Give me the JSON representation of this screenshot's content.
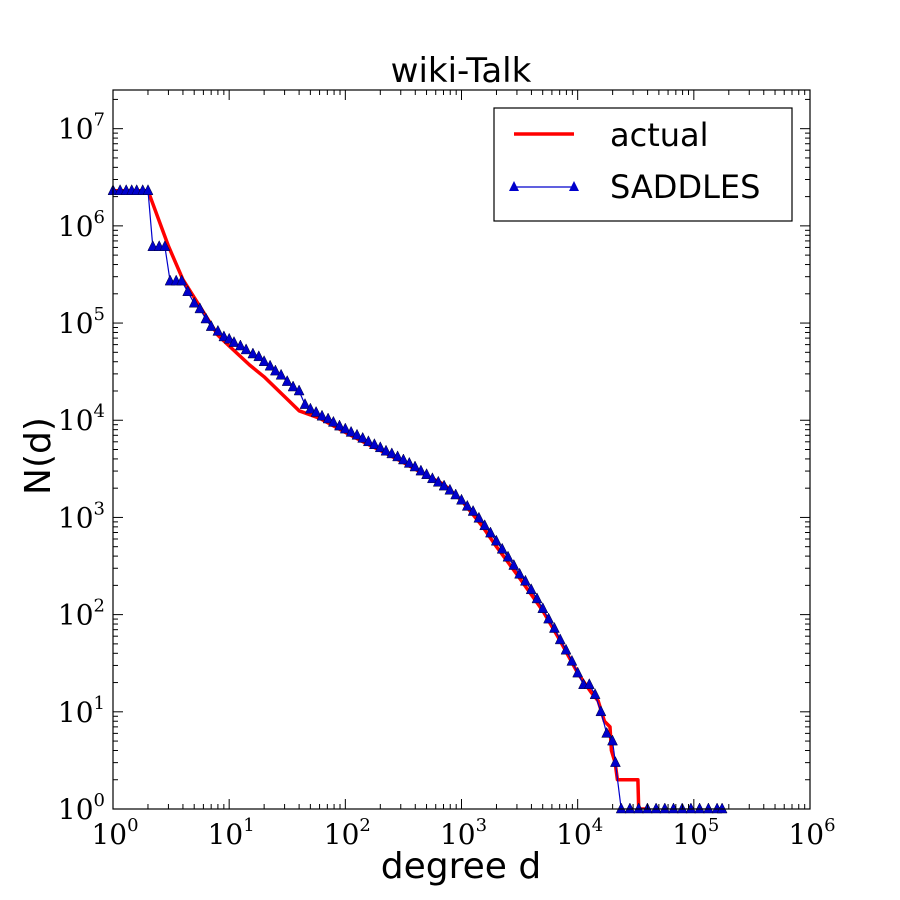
{
  "chart_data": {
    "type": "line",
    "title": "wiki-Talk",
    "xlabel": "degree d",
    "ylabel": "N(d)",
    "xscale": "log",
    "yscale": "log",
    "xlim": [
      1,
      1000000
    ],
    "ylim": [
      1,
      25000000
    ],
    "x_ticks": [
      {
        "base": "10",
        "exp": "0",
        "value": 1
      },
      {
        "base": "10",
        "exp": "1",
        "value": 10
      },
      {
        "base": "10",
        "exp": "2",
        "value": 100
      },
      {
        "base": "10",
        "exp": "3",
        "value": 1000
      },
      {
        "base": "10",
        "exp": "4",
        "value": 10000
      },
      {
        "base": "10",
        "exp": "5",
        "value": 100000
      },
      {
        "base": "10",
        "exp": "6",
        "value": 1000000
      }
    ],
    "y_ticks": [
      {
        "base": "10",
        "exp": "0",
        "value": 1
      },
      {
        "base": "10",
        "exp": "1",
        "value": 10
      },
      {
        "base": "10",
        "exp": "2",
        "value": 100
      },
      {
        "base": "10",
        "exp": "3",
        "value": 1000
      },
      {
        "base": "10",
        "exp": "4",
        "value": 10000
      },
      {
        "base": "10",
        "exp": "5",
        "value": 100000
      },
      {
        "base": "10",
        "exp": "6",
        "value": 1000000
      },
      {
        "base": "10",
        "exp": "7",
        "value": 10000000
      }
    ],
    "grid": false,
    "legend_position": "top-right",
    "series": [
      {
        "name": "actual",
        "color": "#ff0000",
        "style": "line",
        "points": [
          [
            1,
            2300000
          ],
          [
            2,
            2300000
          ],
          [
            3,
            620000
          ],
          [
            4,
            280000
          ],
          [
            6,
            130000
          ],
          [
            8,
            75000
          ],
          [
            10,
            58000
          ],
          [
            15,
            37000
          ],
          [
            20,
            28000
          ],
          [
            30,
            17500
          ],
          [
            40,
            12500
          ],
          [
            60,
            10500
          ],
          [
            100,
            7500
          ],
          [
            150,
            5800
          ],
          [
            200,
            4900
          ],
          [
            300,
            3800
          ],
          [
            500,
            2700
          ],
          [
            700,
            2200
          ],
          [
            1000,
            1500
          ],
          [
            1500,
            820
          ],
          [
            2000,
            500
          ],
          [
            3000,
            260
          ],
          [
            5000,
            110
          ],
          [
            7000,
            55
          ],
          [
            10000,
            25
          ],
          [
            13000,
            16
          ],
          [
            15000,
            13
          ],
          [
            17000,
            8
          ],
          [
            19000,
            7
          ],
          [
            19500,
            4
          ],
          [
            21000,
            3
          ],
          [
            22000,
            2
          ],
          [
            33000,
            2
          ],
          [
            33500,
            1
          ],
          [
            40000,
            1
          ]
        ]
      },
      {
        "name": "SADDLES",
        "color": "#0000cc",
        "style": "line-triangles",
        "points": [
          [
            1,
            2300000
          ],
          [
            1.15,
            2300000
          ],
          [
            1.3,
            2300000
          ],
          [
            1.45,
            2300000
          ],
          [
            1.6,
            2300000
          ],
          [
            1.8,
            2300000
          ],
          [
            2,
            2300000
          ],
          [
            2.2,
            610000
          ],
          [
            2.5,
            610000
          ],
          [
            2.8,
            610000
          ],
          [
            3.1,
            270000
          ],
          [
            3.5,
            270000
          ],
          [
            3.9,
            270000
          ],
          [
            4.4,
            210000
          ],
          [
            5,
            160000
          ],
          [
            5.6,
            140000
          ],
          [
            6.3,
            110000
          ],
          [
            7,
            92000
          ],
          [
            8,
            82000
          ],
          [
            9,
            72000
          ],
          [
            10,
            68000
          ],
          [
            11,
            63000
          ],
          [
            12.5,
            58000
          ],
          [
            14,
            53000
          ],
          [
            16,
            48000
          ],
          [
            18,
            45000
          ],
          [
            20,
            40000
          ],
          [
            22.5,
            36000
          ],
          [
            25,
            32000
          ],
          [
            28,
            29000
          ],
          [
            31.6,
            25000
          ],
          [
            35.5,
            22000
          ],
          [
            40,
            20000
          ],
          [
            45,
            14500
          ],
          [
            50,
            13000
          ],
          [
            56,
            12000
          ],
          [
            63,
            11000
          ],
          [
            71,
            10300
          ],
          [
            79,
            9500
          ],
          [
            89,
            8700
          ],
          [
            100,
            8100
          ],
          [
            112,
            7500
          ],
          [
            126,
            7000
          ],
          [
            141,
            6500
          ],
          [
            158,
            6000
          ],
          [
            178,
            5600
          ],
          [
            200,
            5200
          ],
          [
            224,
            4800
          ],
          [
            251,
            4500
          ],
          [
            282,
            4200
          ],
          [
            316,
            3900
          ],
          [
            355,
            3600
          ],
          [
            398,
            3300
          ],
          [
            447,
            3000
          ],
          [
            501,
            2750
          ],
          [
            562,
            2500
          ],
          [
            631,
            2300
          ],
          [
            708,
            2100
          ],
          [
            794,
            1900
          ],
          [
            891,
            1700
          ],
          [
            1000,
            1500
          ],
          [
            1122,
            1300
          ],
          [
            1259,
            1150
          ],
          [
            1413,
            980
          ],
          [
            1585,
            820
          ],
          [
            1778,
            690
          ],
          [
            1995,
            570
          ],
          [
            2239,
            470
          ],
          [
            2512,
            390
          ],
          [
            2818,
            320
          ],
          [
            3162,
            260
          ],
          [
            3548,
            220
          ],
          [
            3981,
            180
          ],
          [
            4467,
            145
          ],
          [
            5012,
            115
          ],
          [
            5623,
            90
          ],
          [
            6310,
            72
          ],
          [
            7079,
            55
          ],
          [
            7943,
            43
          ],
          [
            8913,
            33
          ],
          [
            10000,
            25
          ],
          [
            11220,
            19
          ],
          [
            12589,
            19
          ],
          [
            14125,
            15
          ],
          [
            15849,
            10
          ],
          [
            17783,
            6
          ],
          [
            19953,
            5
          ],
          [
            21135,
            3
          ],
          [
            23714,
            1
          ],
          [
            28184,
            1
          ],
          [
            33497,
            1
          ],
          [
            39811,
            1
          ],
          [
            47315,
            1
          ],
          [
            56234,
            1
          ],
          [
            66834,
            1
          ],
          [
            79433,
            1
          ],
          [
            94406,
            1
          ],
          [
            112202,
            1
          ],
          [
            133352,
            1
          ],
          [
            158489,
            1
          ],
          [
            175000,
            1
          ]
        ]
      }
    ]
  }
}
